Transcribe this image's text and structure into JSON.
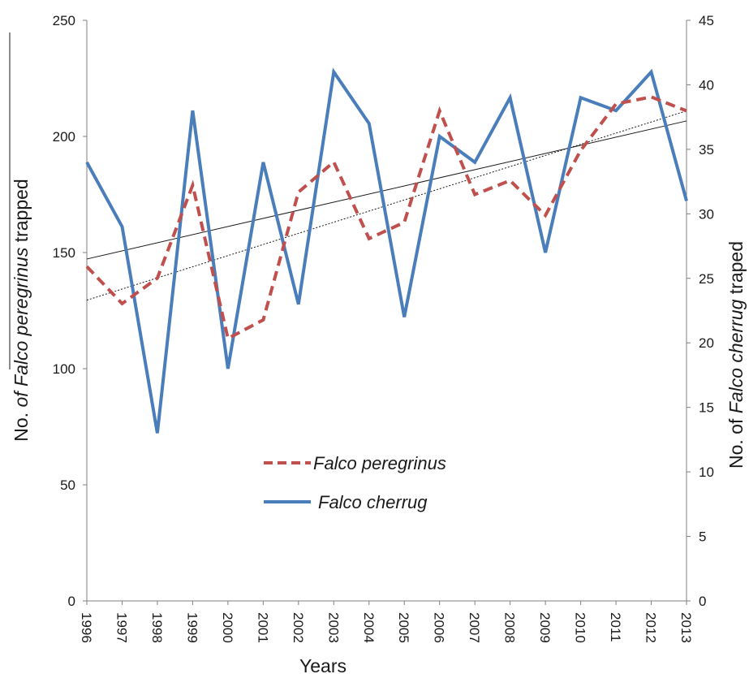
{
  "chart_data": {
    "type": "line",
    "x": [
      "1996",
      "1997",
      "1998",
      "1999",
      "2000",
      "2001",
      "2002",
      "2003",
      "2004",
      "2005",
      "2006",
      "2007",
      "2008",
      "2009",
      "2010",
      "2011",
      "2012",
      "2013"
    ],
    "xlabel": "Years",
    "ylabel_left": {
      "pre": "No. ",
      "italic": "of Falco peregrinus",
      "post": " trapped"
    },
    "ylabel_right": {
      "pre": "No. of  ",
      "italic": "Falco cherrug",
      "post": " traped"
    },
    "ylim_left": [
      0,
      250
    ],
    "yticks_left": [
      0,
      50,
      100,
      150,
      200,
      250
    ],
    "ylim_right": [
      0,
      45
    ],
    "yticks_right": [
      0,
      5,
      10,
      15,
      20,
      25,
      30,
      35,
      40,
      45
    ],
    "grid": false,
    "legend_position": "center-left",
    "series": [
      {
        "name": "Falco peregrinus",
        "axis": "left",
        "style": "dashed",
        "color": "#c0504d",
        "values": [
          144,
          128,
          139,
          179,
          113,
          121,
          176,
          189,
          156,
          163,
          211,
          175,
          181,
          166,
          194,
          214,
          217,
          211
        ],
        "trendline": {
          "style": "dotted",
          "color": "#1a1a1a",
          "start": 129.5,
          "end": 211
        }
      },
      {
        "name": "Falco cherrug",
        "axis": "right",
        "style": "solid",
        "color": "#4a7ebb",
        "values": [
          34,
          29,
          13,
          38,
          18,
          34,
          23,
          41,
          37,
          22,
          36,
          34,
          39,
          27,
          39,
          38,
          41,
          31
        ],
        "trendline": {
          "style": "solid",
          "color": "#1a1a1a",
          "start": 26.5,
          "end": 37.2
        }
      }
    ]
  }
}
